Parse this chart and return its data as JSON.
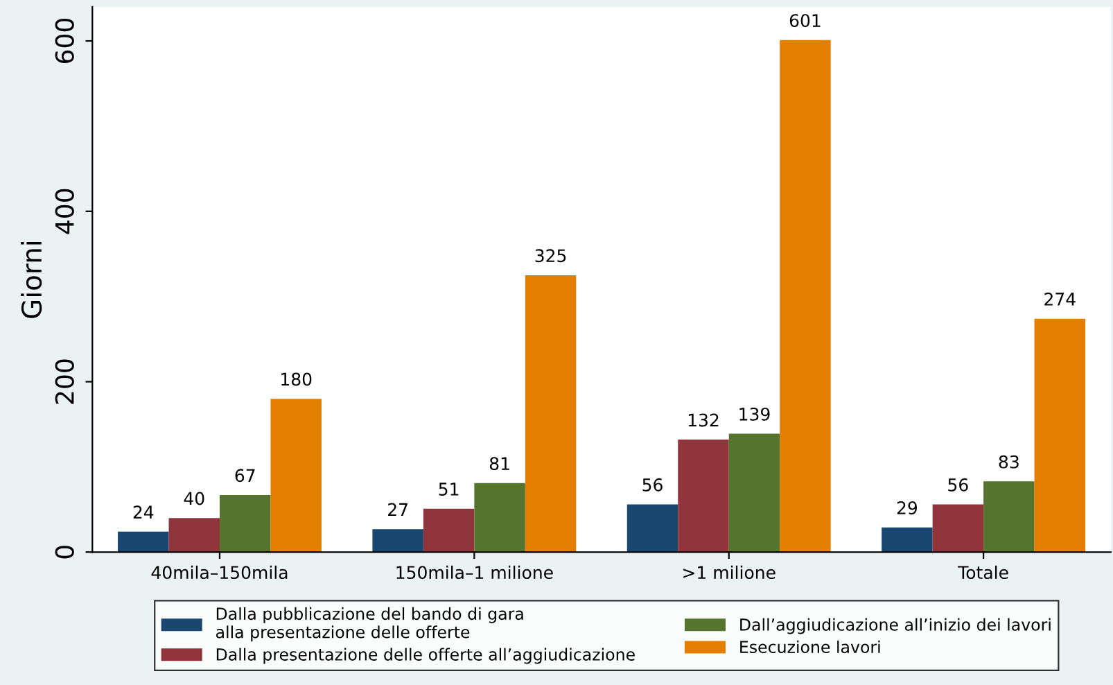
{
  "chart_data": {
    "type": "bar",
    "ylabel": "Giorni",
    "categories": [
      "40mila–150mila",
      "150mila–1 milione",
      ">1 milione",
      "Totale"
    ],
    "series": [
      {
        "name": "Dalla pubblicazione del bando di gara\nalla presentazione delle offerte",
        "color": "#1a476f",
        "values": [
          24,
          27,
          56,
          29
        ]
      },
      {
        "name": "Dalla presentazione delle offerte all’aggiudicazione",
        "color": "#90353b",
        "values": [
          40,
          51,
          132,
          56
        ]
      },
      {
        "name": "Dall’aggiudicazione all’inizio dei lavori",
        "color": "#55752f",
        "values": [
          67,
          81,
          139,
          83
        ]
      },
      {
        "name": "Esecuzione lavori",
        "color": "#e37e00",
        "values": [
          180,
          325,
          601,
          274
        ]
      }
    ],
    "ylim": [
      0,
      640
    ],
    "yticks": [
      0,
      200,
      400,
      600
    ],
    "data_labels": true,
    "grid": false,
    "legend": "bottom"
  }
}
